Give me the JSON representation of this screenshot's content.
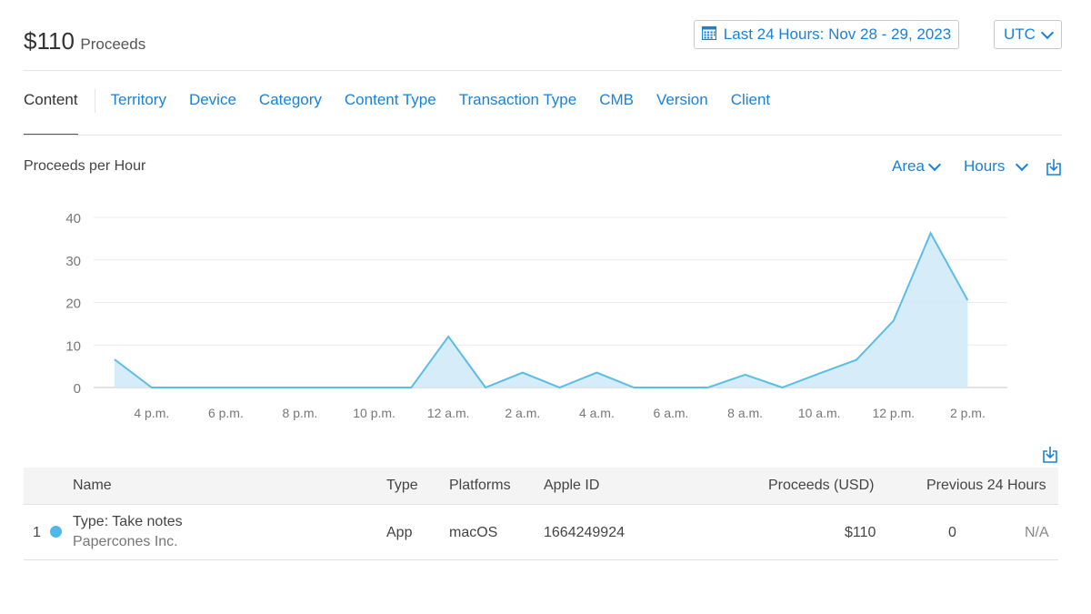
{
  "header": {
    "amount": "$110",
    "label": "Proceeds",
    "date_range": "Last 24 Hours: Nov 28 - 29, 2023",
    "timezone": "UTC"
  },
  "tabs": [
    {
      "label": "Content",
      "active": true
    },
    {
      "label": "Territory"
    },
    {
      "label": "Device"
    },
    {
      "label": "Category"
    },
    {
      "label": "Content Type"
    },
    {
      "label": "Transaction Type"
    },
    {
      "label": "CMB"
    },
    {
      "label": "Version"
    },
    {
      "label": "Client"
    }
  ],
  "chart_controls": {
    "title": "Proceeds per Hour",
    "chart_type": "Area",
    "granularity": "Hours"
  },
  "chart_data": {
    "type": "area",
    "title": "",
    "xlabel": "",
    "ylabel": "",
    "ylim": [
      0,
      40
    ],
    "yticks": [
      0,
      10,
      20,
      30,
      40
    ],
    "xtick_labels": [
      "4 p.m.",
      "6 p.m.",
      "8 p.m.",
      "10 p.m.",
      "12 a.m.",
      "2 a.m.",
      "4 a.m.",
      "6 a.m.",
      "8 a.m.",
      "10 a.m.",
      "12 p.m.",
      "2 p.m."
    ],
    "x": [
      "3 p.m.",
      "4 p.m.",
      "5 p.m.",
      "6 p.m.",
      "7 p.m.",
      "8 p.m.",
      "9 p.m.",
      "10 p.m.",
      "11 p.m.",
      "12 a.m.",
      "1 a.m.",
      "2 a.m.",
      "3 a.m.",
      "4 a.m.",
      "5 a.m.",
      "6 a.m.",
      "7 a.m.",
      "8 a.m.",
      "9 a.m.",
      "10 a.m.",
      "11 a.m.",
      "12 p.m.",
      "1 p.m.",
      "2 p.m."
    ],
    "values": [
      6.6,
      0,
      0,
      0,
      0,
      0,
      0,
      0,
      0,
      12,
      0,
      3.5,
      0,
      3.5,
      0,
      0,
      0,
      3,
      0,
      3.3,
      6.5,
      15.7,
      36.3,
      20.5
    ],
    "grid": true,
    "colors": {
      "line": "#5bbde8",
      "fill": "#cfe9f8"
    }
  },
  "table": {
    "columns": [
      "Name",
      "Type",
      "Platforms",
      "Apple ID",
      "Proceeds (USD)",
      "Previous 24 Hours"
    ],
    "rows": [
      {
        "rank": "1",
        "name": "Type: Take notes",
        "developer": "Papercones Inc.",
        "type": "App",
        "platforms": "macOS",
        "apple_id": "1664249924",
        "proceeds": "$110",
        "previous": "0",
        "change": "N/A"
      }
    ]
  },
  "icons": {
    "calendar": "calendar-icon",
    "download": "download-icon",
    "chevron": "chevron-down-icon"
  },
  "colors": {
    "accent": "#1a82d6",
    "series_dot": "#4fb8ea"
  }
}
